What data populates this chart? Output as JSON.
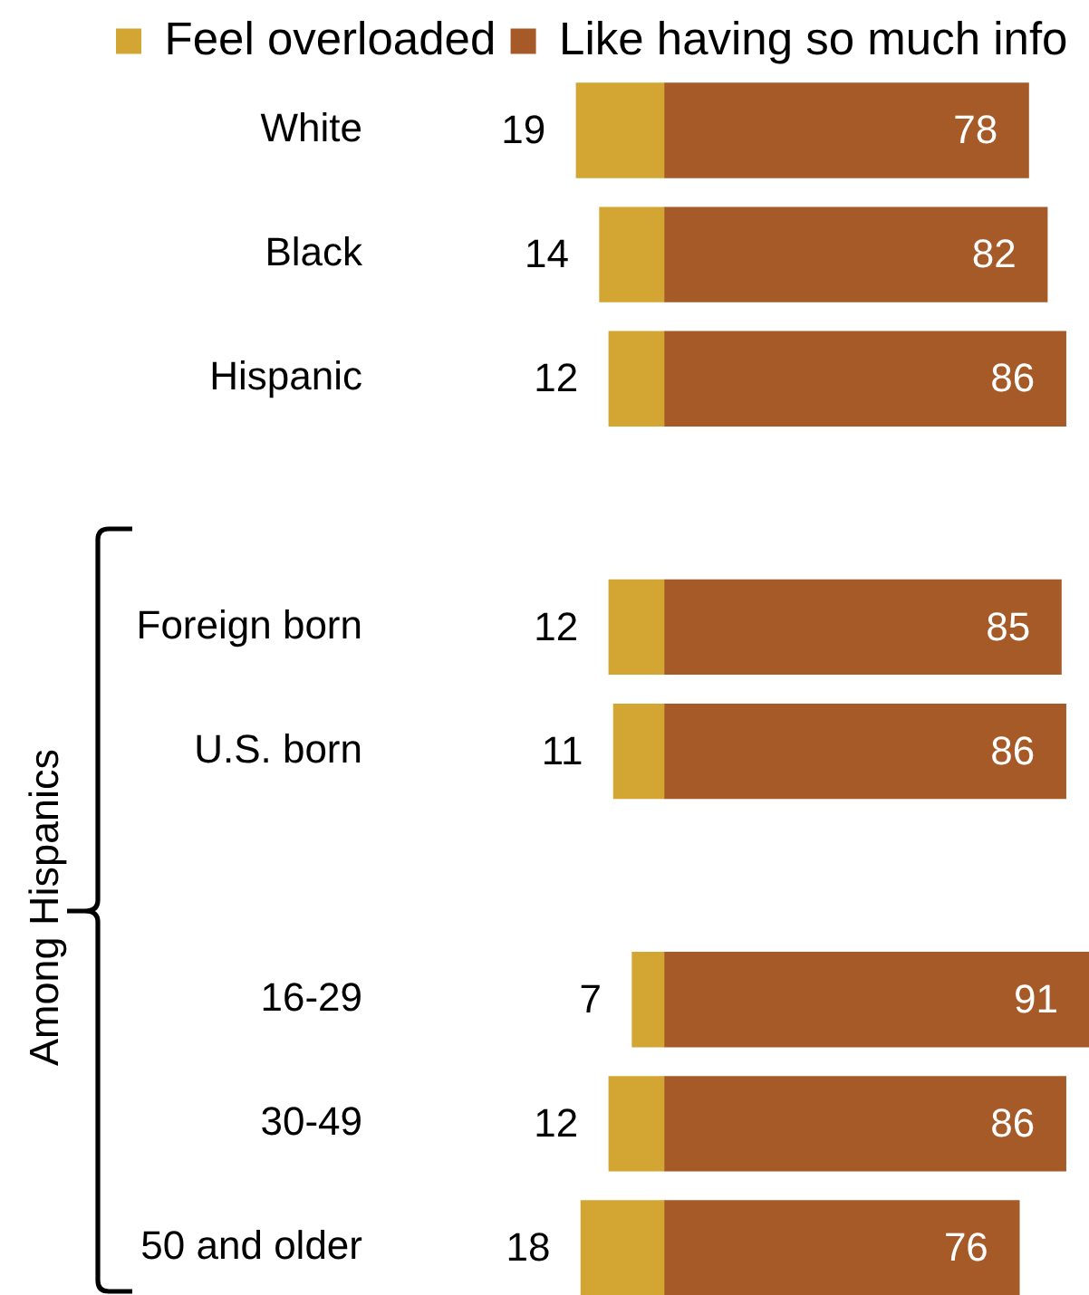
{
  "chart_data": [
    {
      "type": "bar",
      "orientation": "horizontal",
      "categories": [
        "White",
        "Black",
        "Hispanic",
        null,
        "Foreign born",
        "U.S. born",
        null,
        "16-29",
        "30-49",
        "50 and older"
      ],
      "series": [
        {
          "name": "Feel overloaded",
          "color": "#d3a532",
          "values": [
            19,
            14,
            12,
            null,
            12,
            11,
            null,
            7,
            12,
            18
          ]
        }
      ],
      "data_labels": true,
      "legend": "top left",
      "tick_labels": "y",
      "annotations": [
        "Among Hispanics"
      ]
    },
    {
      "type": "bar",
      "orientation": "horizontal",
      "categories": [
        null,
        null,
        null,
        null,
        null,
        null,
        null,
        null,
        null,
        null
      ],
      "series": [
        {
          "name": "Like having so much info",
          "color": "#a55a27",
          "values": [
            78,
            82,
            86,
            null,
            85,
            86,
            null,
            91,
            86,
            76
          ]
        }
      ],
      "data_labels": true,
      "legend": "top",
      "tick_labels": false
    }
  ]
}
